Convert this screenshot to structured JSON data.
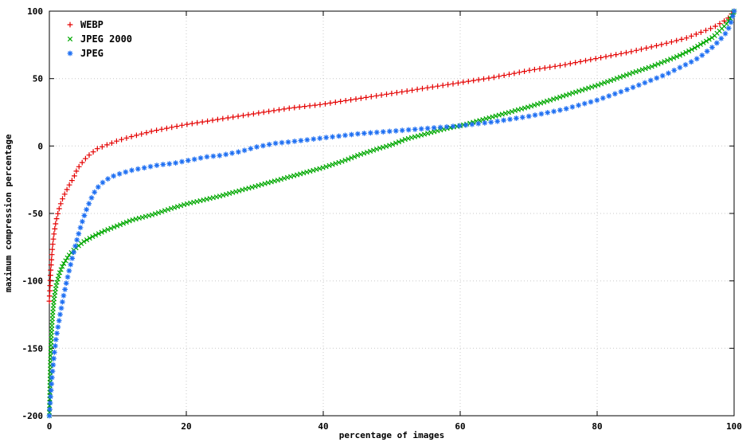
{
  "chart_data": {
    "type": "scatter",
    "title": "",
    "xlabel": "percentage of images",
    "ylabel": "maximum compression percentage",
    "xlim": [
      0,
      100
    ],
    "ylim": [
      -200,
      100
    ],
    "xticks": [
      0,
      20,
      40,
      60,
      80,
      100
    ],
    "yticks": [
      -200,
      -150,
      -100,
      -50,
      0,
      50,
      100
    ],
    "grid": true,
    "legend_position": "top-left",
    "border_color": "#000000",
    "grid_color": "#c8c8c8",
    "series": [
      {
        "name": "WEBP",
        "marker": "plus",
        "color": "#e40000",
        "marker_spacing_px": 6.5,
        "points": [
          [
            0,
            -115
          ],
          [
            0.2,
            -92
          ],
          [
            0.4,
            -78
          ],
          [
            0.6,
            -68
          ],
          [
            0.8,
            -61
          ],
          [
            1,
            -55
          ],
          [
            1.5,
            -45
          ],
          [
            2,
            -38
          ],
          [
            2.5,
            -33
          ],
          [
            3,
            -28
          ],
          [
            3.5,
            -24
          ],
          [
            4,
            -18
          ],
          [
            4.5,
            -14
          ],
          [
            5,
            -11
          ],
          [
            5.5,
            -8
          ],
          [
            6,
            -6
          ],
          [
            6.5,
            -4
          ],
          [
            7,
            -2
          ],
          [
            8,
            0
          ],
          [
            9,
            2
          ],
          [
            10,
            4
          ],
          [
            12,
            7
          ],
          [
            15,
            11
          ],
          [
            20,
            16
          ],
          [
            25,
            20
          ],
          [
            30,
            24
          ],
          [
            35,
            28
          ],
          [
            40,
            31
          ],
          [
            45,
            35
          ],
          [
            50,
            39
          ],
          [
            55,
            43
          ],
          [
            60,
            47
          ],
          [
            65,
            51
          ],
          [
            70,
            56
          ],
          [
            75,
            60
          ],
          [
            80,
            65
          ],
          [
            85,
            70
          ],
          [
            90,
            76
          ],
          [
            93,
            80
          ],
          [
            95,
            84
          ],
          [
            97,
            88
          ],
          [
            98,
            91
          ],
          [
            99,
            94
          ],
          [
            99.5,
            97
          ],
          [
            100,
            100
          ]
        ]
      },
      {
        "name": "JPEG 2000",
        "marker": "cross",
        "color": "#00a800",
        "marker_spacing_px": 4.2,
        "points": [
          [
            0,
            -200
          ],
          [
            0.1,
            -170
          ],
          [
            0.2,
            -152
          ],
          [
            0.3,
            -140
          ],
          [
            0.5,
            -124
          ],
          [
            0.7,
            -113
          ],
          [
            1,
            -103
          ],
          [
            1.5,
            -94
          ],
          [
            2,
            -88
          ],
          [
            2.5,
            -84
          ],
          [
            3,
            -80
          ],
          [
            4,
            -75
          ],
          [
            5,
            -71
          ],
          [
            6,
            -68
          ],
          [
            8,
            -63
          ],
          [
            10,
            -59
          ],
          [
            12,
            -55
          ],
          [
            15,
            -51
          ],
          [
            18,
            -46
          ],
          [
            20,
            -43
          ],
          [
            25,
            -37
          ],
          [
            30,
            -30
          ],
          [
            35,
            -23
          ],
          [
            40,
            -16
          ],
          [
            43,
            -11
          ],
          [
            45,
            -7
          ],
          [
            48,
            -2
          ],
          [
            50,
            1
          ],
          [
            52,
            5
          ],
          [
            55,
            9
          ],
          [
            58,
            13
          ],
          [
            60,
            15
          ],
          [
            65,
            22
          ],
          [
            70,
            29
          ],
          [
            75,
            37
          ],
          [
            80,
            45
          ],
          [
            85,
            54
          ],
          [
            88,
            59
          ],
          [
            90,
            63
          ],
          [
            92,
            67
          ],
          [
            94,
            72
          ],
          [
            96,
            78
          ],
          [
            97,
            81
          ],
          [
            98,
            86
          ],
          [
            99,
            91
          ],
          [
            99.5,
            95
          ],
          [
            100,
            100
          ]
        ]
      },
      {
        "name": "JPEG",
        "marker": "asterisk",
        "color": "#1e6ff2",
        "marker_spacing_px": 8,
        "points": [
          [
            0,
            -200
          ],
          [
            0.1,
            -192
          ],
          [
            0.2,
            -184
          ],
          [
            0.3,
            -177
          ],
          [
            0.5,
            -165
          ],
          [
            0.7,
            -155
          ],
          [
            1,
            -142
          ],
          [
            1.5,
            -127
          ],
          [
            2,
            -113
          ],
          [
            2.5,
            -101
          ],
          [
            3,
            -90
          ],
          [
            3.5,
            -80
          ],
          [
            4,
            -70
          ],
          [
            4.5,
            -61
          ],
          [
            5,
            -53
          ],
          [
            5.5,
            -46
          ],
          [
            6,
            -40
          ],
          [
            6.5,
            -35
          ],
          [
            7,
            -31
          ],
          [
            8,
            -26
          ],
          [
            9,
            -23
          ],
          [
            10,
            -21
          ],
          [
            12,
            -18
          ],
          [
            14,
            -16
          ],
          [
            16,
            -14
          ],
          [
            18,
            -13
          ],
          [
            20,
            -11
          ],
          [
            23,
            -8
          ],
          [
            25,
            -7
          ],
          [
            28,
            -4
          ],
          [
            30,
            -1
          ],
          [
            33,
            2
          ],
          [
            35,
            3
          ],
          [
            40,
            6
          ],
          [
            45,
            9
          ],
          [
            50,
            11
          ],
          [
            55,
            13
          ],
          [
            60,
            15
          ],
          [
            65,
            18
          ],
          [
            70,
            22
          ],
          [
            75,
            27
          ],
          [
            80,
            34
          ],
          [
            85,
            43
          ],
          [
            88,
            49
          ],
          [
            90,
            53
          ],
          [
            92,
            58
          ],
          [
            94,
            63
          ],
          [
            95,
            66
          ],
          [
            96,
            70
          ],
          [
            97,
            74
          ],
          [
            98,
            79
          ],
          [
            99,
            85
          ],
          [
            99.5,
            91
          ],
          [
            100,
            100
          ]
        ]
      }
    ]
  }
}
